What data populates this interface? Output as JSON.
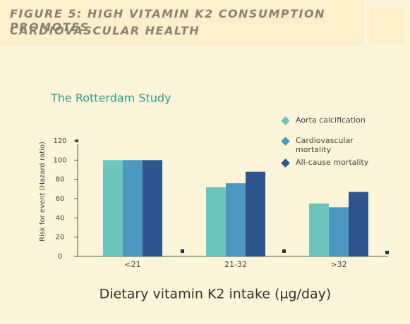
{
  "header": {
    "title_line1": "FIGURE 5: HIGH VITAMIN K2 CONSUMPTION PROMOTES",
    "title_line2": "CARDIOVASCULAR HEALTH"
  },
  "chart_data": {
    "type": "bar",
    "title": "The Rotterdam Study",
    "x_label": "Dietary vitamin K2 intake (µg/day)",
    "y_label": "Risk for event (Hazard ratio)",
    "categories": [
      "<21",
      "21-32",
      ">32"
    ],
    "series": [
      {
        "name": "Aorta calcification",
        "color": "#6cc5bd",
        "values": [
          100,
          72,
          55
        ]
      },
      {
        "name": "Cardiovascular mortality",
        "color": "#4b97c0",
        "values": [
          100,
          76,
          51
        ]
      },
      {
        "name": "All-cause mortality",
        "color": "#2f5590",
        "values": [
          100,
          88,
          67
        ]
      }
    ],
    "ylim": [
      0,
      120
    ],
    "yticks": [
      0,
      20,
      40,
      60,
      80,
      100,
      120
    ],
    "grid": false,
    "legend": "top-right"
  }
}
